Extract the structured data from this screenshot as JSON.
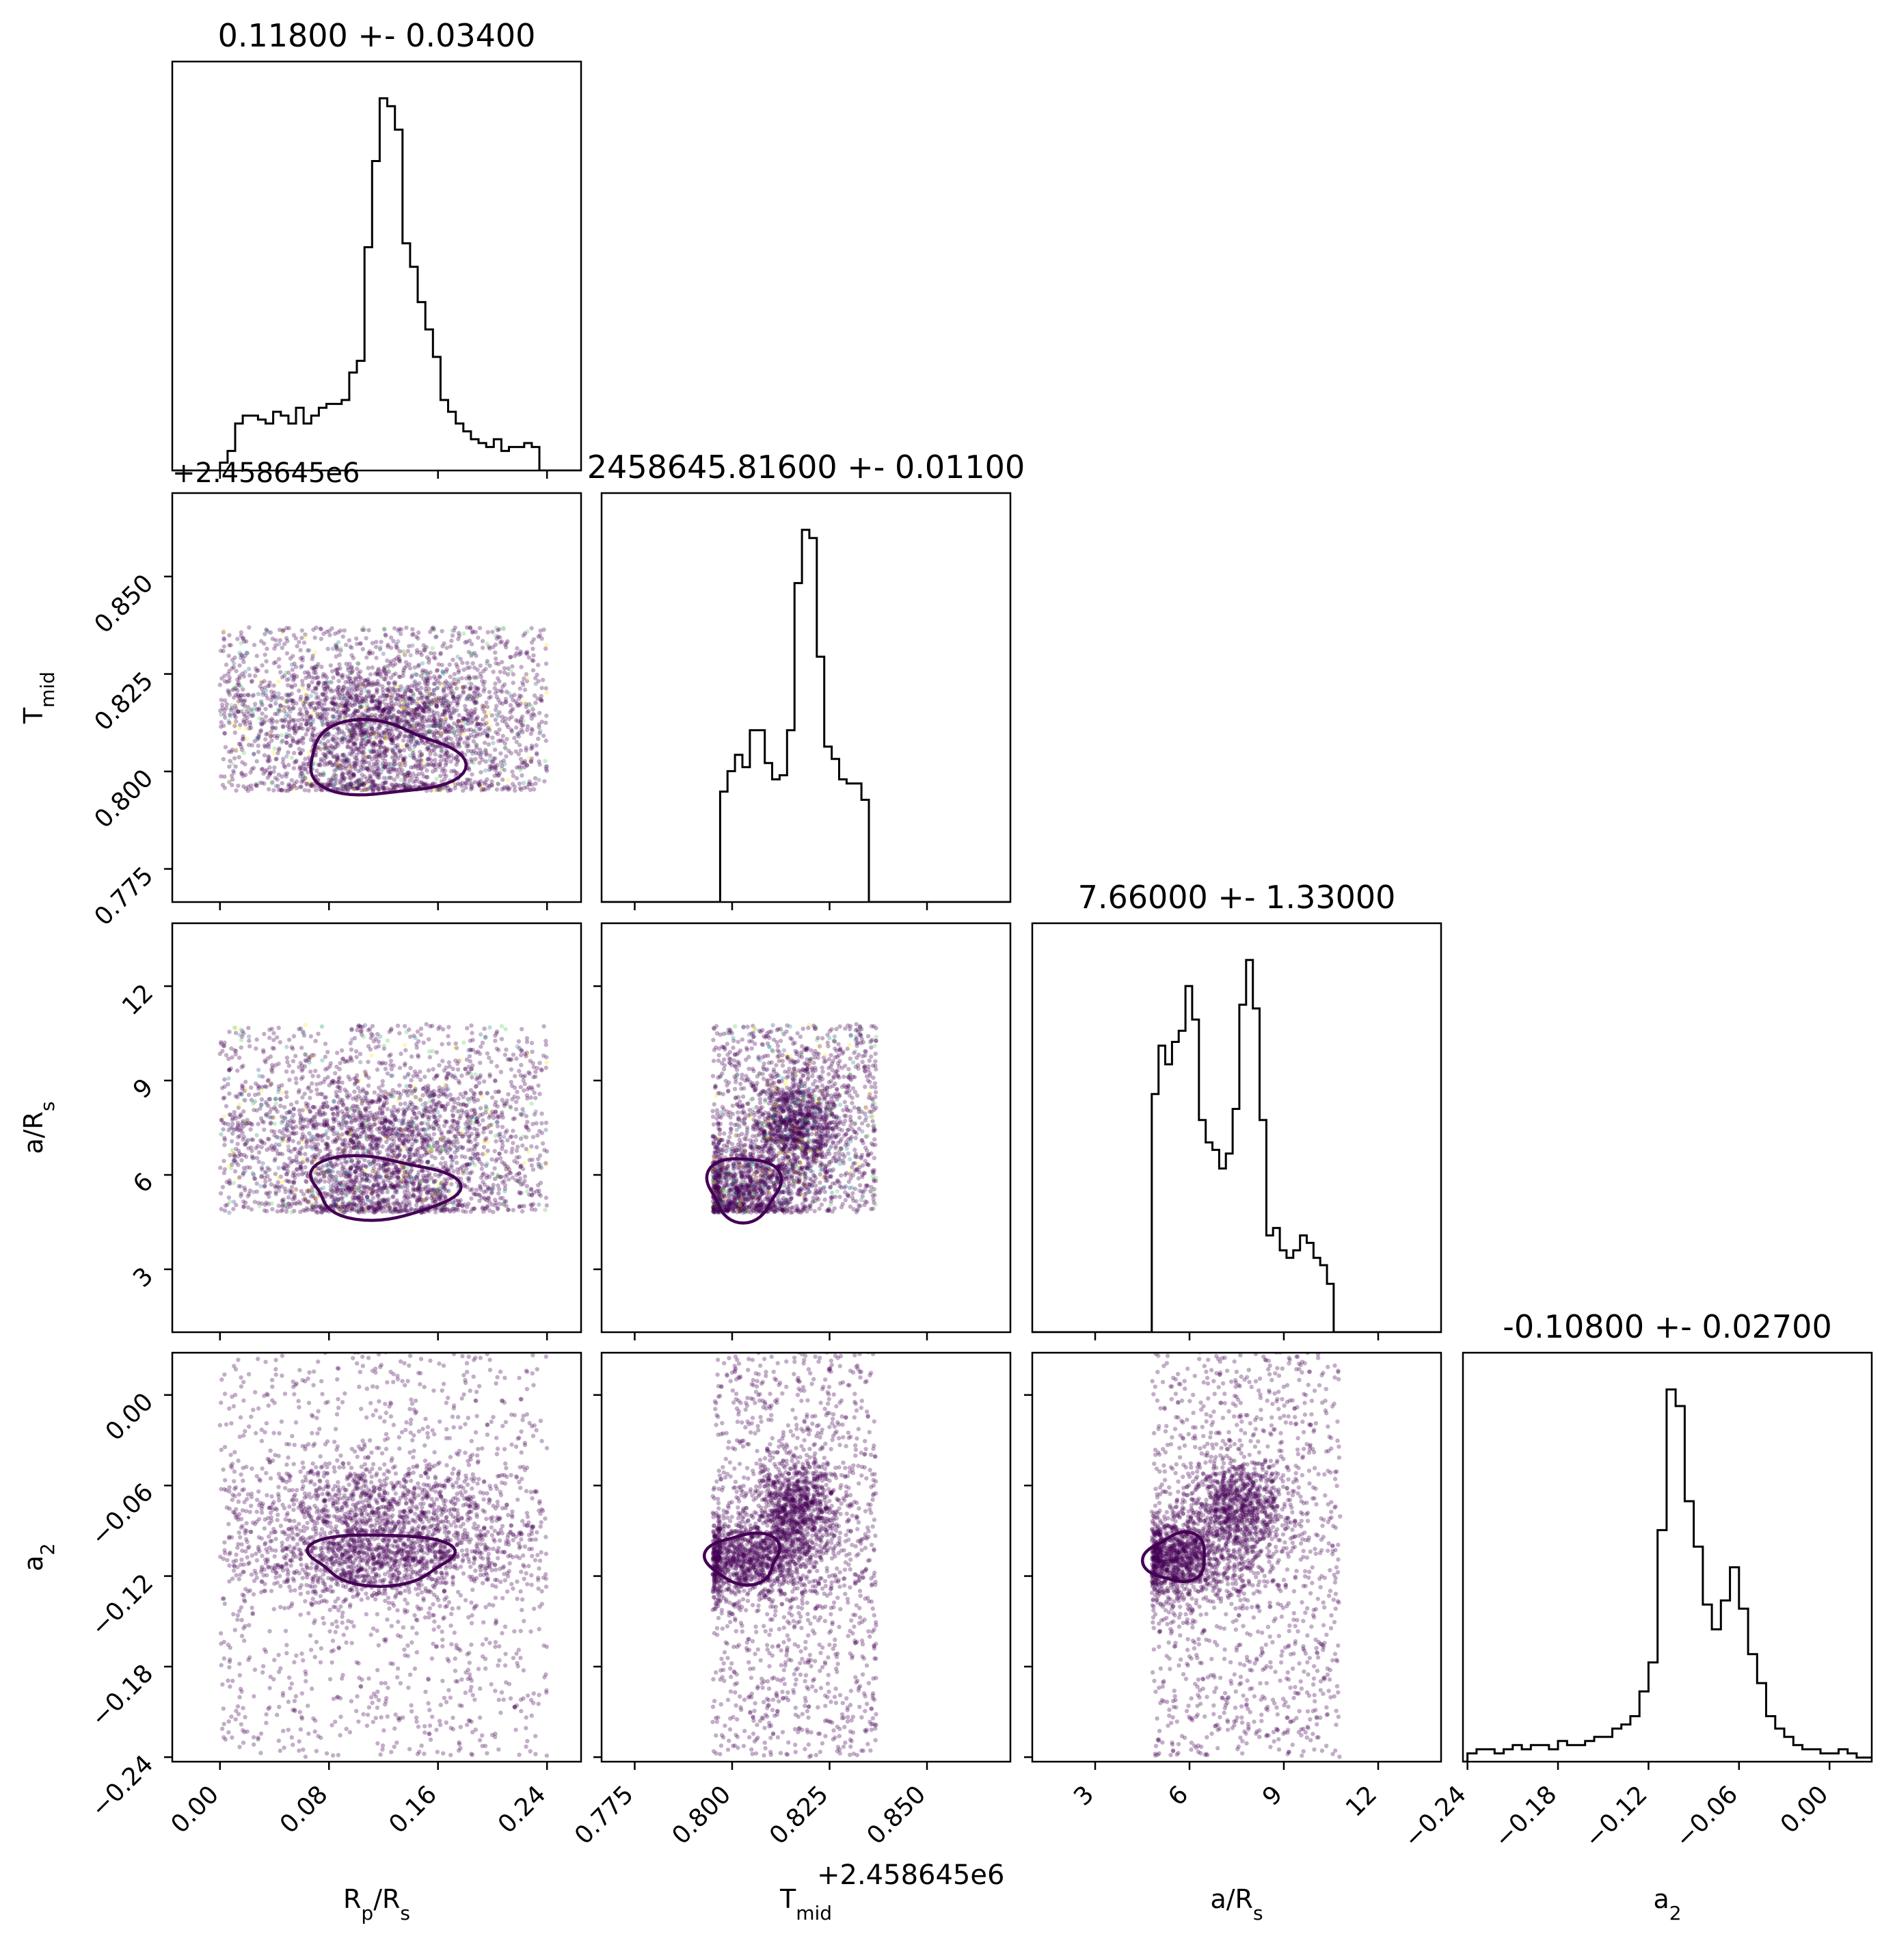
{
  "chart_data": {
    "type": "corner",
    "params": [
      {
        "key": "rp",
        "label": "R",
        "label_sub": "p",
        "label_mid": "/R",
        "label_sub2": "s",
        "lim": [
          -0.035,
          0.265
        ],
        "ticks": [
          "0.00",
          "0.08",
          "0.16",
          "0.24"
        ],
        "tick_values": [
          0,
          0.08,
          0.16,
          0.24
        ],
        "sample_range": [
          0.0,
          0.24
        ],
        "title": "0.11800 +- 0.03400"
      },
      {
        "key": "tmid",
        "label": "T",
        "label_sub": "mid",
        "label_mid": "",
        "label_sub2": "",
        "lim": [
          0.7665,
          0.8714
        ],
        "ticks": [
          "0.775",
          "0.800",
          "0.825",
          "0.850"
        ],
        "tick_values": [
          0.775,
          0.8,
          0.825,
          0.85
        ],
        "sample_range": [
          0.795,
          0.837
        ],
        "offset_text": "+2.458645e6",
        "title": "2458645.81600 +- 0.01100"
      },
      {
        "key": "ars",
        "label": "a/R",
        "label_sub": "s",
        "label_mid": "",
        "label_sub2": "",
        "lim": [
          1.0,
          14.0
        ],
        "ticks": [
          "3",
          "6",
          "9",
          "12"
        ],
        "tick_values": [
          3,
          6,
          9,
          12
        ],
        "sample_range": [
          4.8,
          10.8
        ],
        "title": "7.66000 +- 1.33000"
      },
      {
        "key": "a2",
        "label": "a",
        "label_sub": "2",
        "label_mid": "",
        "label_sub2": "",
        "lim": [
          -0.243,
          0.028
        ],
        "ticks": [
          "−0.24",
          "−0.18",
          "−0.12",
          "−0.06",
          "0.00"
        ],
        "tick_values": [
          -0.24,
          -0.18,
          -0.12,
          -0.06,
          0.0
        ],
        "sample_range": [
          -0.24,
          0.03
        ],
        "title": "-0.10800 +- 0.02700"
      }
    ],
    "histograms": [
      {
        "param": "rp",
        "bins": [
          0.0,
          0.24
        ],
        "heights": [
          0.02,
          0.05,
          0.12,
          0.14,
          0.14,
          0.13,
          0.12,
          0.15,
          0.14,
          0.12,
          0.16,
          0.12,
          0.14,
          0.16,
          0.17,
          0.17,
          0.18,
          0.25,
          0.28,
          0.57,
          0.79,
          0.95,
          0.93,
          0.87,
          0.58,
          0.52,
          0.43,
          0.36,
          0.29,
          0.18,
          0.15,
          0.12,
          0.1,
          0.08,
          0.07,
          0.06,
          0.08,
          0.05,
          0.06,
          0.06,
          0.07,
          0.06,
          0.0
        ]
      },
      {
        "param": "tmid",
        "bins": [
          0.795,
          0.837
        ],
        "heights": [
          0,
          0.27,
          0.32,
          0.36,
          0.33,
          0.42,
          0.42,
          0.34,
          0.3,
          0.31,
          0.42,
          0.78,
          0.91,
          0.89,
          0.6,
          0.38,
          0.35,
          0.3,
          0.29,
          0.29,
          0.25,
          0.0
        ]
      },
      {
        "param": "ars",
        "bins": [
          4.8,
          10.8
        ],
        "heights": [
          0.64,
          0.77,
          0.72,
          0.78,
          0.81,
          0.93,
          0.84,
          0.57,
          0.51,
          0.49,
          0.44,
          0.48,
          0.6,
          0.88,
          1.0,
          0.87,
          0.57,
          0.26,
          0.28,
          0.22,
          0.2,
          0.22,
          0.26,
          0.24,
          0.2,
          0.18,
          0.13,
          0.0
        ]
      },
      {
        "param": "a2",
        "bins": [
          -0.24,
          0.03
        ],
        "heights": [
          0.02,
          0.03,
          0.03,
          0.02,
          0.03,
          0.04,
          0.03,
          0.04,
          0.04,
          0.03,
          0.05,
          0.04,
          0.04,
          0.05,
          0.06,
          0.06,
          0.08,
          0.09,
          0.11,
          0.17,
          0.24,
          0.56,
          0.9,
          0.86,
          0.63,
          0.52,
          0.38,
          0.32,
          0.39,
          0.47,
          0.37,
          0.26,
          0.19,
          0.11,
          0.08,
          0.06,
          0.04,
          0.03,
          0.03,
          0.02,
          0.02,
          0.03,
          0.02,
          0.01,
          0.01
        ]
      }
    ],
    "modes": {
      "rp": [
        [
          0.118,
          0.034,
          1.0
        ]
      ],
      "tmid": [
        [
          0.803,
          0.006,
          0.45
        ],
        [
          0.8165,
          0.004,
          0.55
        ]
      ],
      "ars": [
        [
          5.6,
          0.6,
          0.5
        ],
        [
          7.5,
          0.55,
          0.5
        ]
      ],
      "a2": [
        [
          -0.108,
          0.01,
          0.55
        ],
        [
          -0.075,
          0.012,
          0.45
        ]
      ]
    },
    "grid": false,
    "point_color": "#440154",
    "contour_color": "#440154",
    "line_color": "#000000"
  }
}
